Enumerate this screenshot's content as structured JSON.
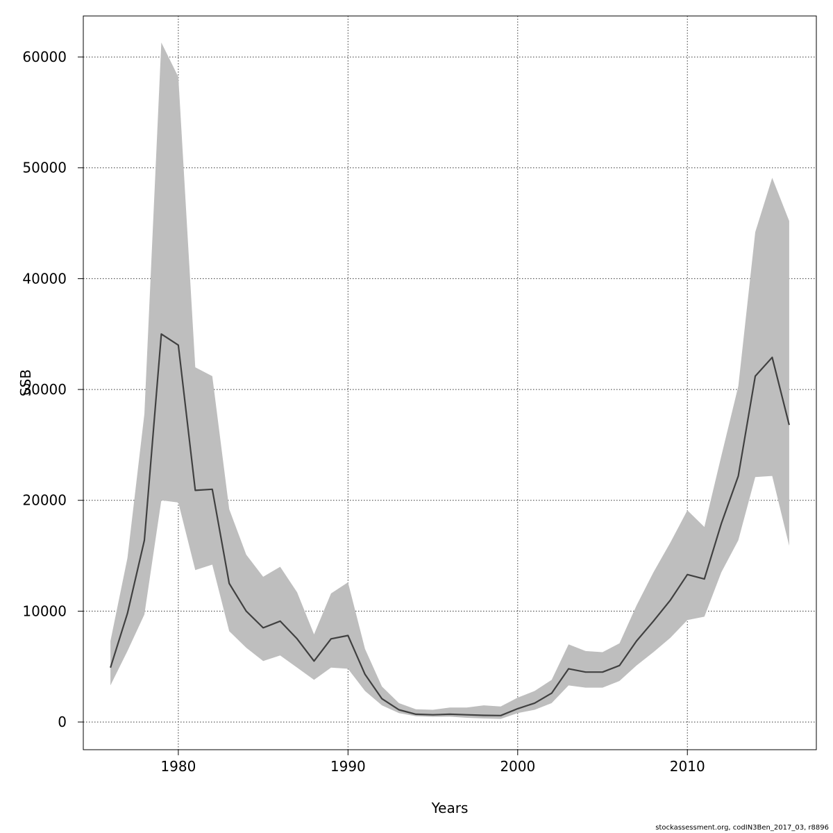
{
  "chart_data": {
    "type": "area",
    "title": "",
    "xlabel": "Years",
    "ylabel": "SSB",
    "xlim": [
      1974.4,
      2017.6
    ],
    "ylim": [
      -2500,
      63700
    ],
    "x_ticks": [
      1980,
      1990,
      2000,
      2010
    ],
    "y_ticks": [
      0,
      10000,
      20000,
      30000,
      40000,
      50000,
      60000
    ],
    "grid": true,
    "band_color": "#bebebe",
    "line_color": "#404040",
    "x": [
      1976,
      1977,
      1978,
      1979,
      1980,
      1981,
      1982,
      1983,
      1984,
      1985,
      1986,
      1987,
      1988,
      1989,
      1990,
      1991,
      1992,
      1993,
      1994,
      1995,
      1996,
      1997,
      1998,
      1999,
      2000,
      2001,
      2002,
      2003,
      2004,
      2005,
      2006,
      2007,
      2008,
      2009,
      2010,
      2011,
      2012,
      2013,
      2014,
      2015,
      2016
    ],
    "series": [
      {
        "values": [
          4900,
          9800,
          16400,
          35000,
          34000,
          20900,
          21000,
          12500,
          10000,
          8500,
          9100,
          7500,
          5500,
          7500,
          7800,
          4300,
          2100,
          1100,
          700,
          650,
          700,
          650,
          600,
          580,
          1200,
          1700,
          2600,
          4800,
          4500,
          4500,
          5100,
          7300,
          9100,
          11000,
          13300,
          12900,
          17900,
          22200,
          31200,
          32900,
          26800
        ]
      }
    ],
    "lower": [
      3300,
      6400,
      9700,
      20000,
      19800,
      13700,
      14200,
      8200,
      6700,
      5500,
      6000,
      4900,
      3800,
      4900,
      4800,
      2800,
      1500,
      800,
      520,
      470,
      480,
      380,
      320,
      280,
      800,
      1100,
      1700,
      3300,
      3100,
      3100,
      3700,
      5100,
      6300,
      7600,
      9200,
      9500,
      13500,
      16400,
      22100,
      22200,
      15900
    ],
    "upper": [
      7300,
      14800,
      27800,
      61300,
      58200,
      32000,
      31200,
      19200,
      15100,
      13100,
      14000,
      11700,
      7900,
      11600,
      12600,
      6600,
      3200,
      1700,
      1150,
      1100,
      1300,
      1300,
      1500,
      1400,
      2200,
      2800,
      3800,
      7000,
      6400,
      6300,
      7100,
      10500,
      13500,
      16200,
      19100,
      17600,
      24000,
      30300,
      44200,
      49100,
      45200
    ]
  },
  "footnote": "stockassessment.org, codIN3Ben_2017_03, r8896"
}
